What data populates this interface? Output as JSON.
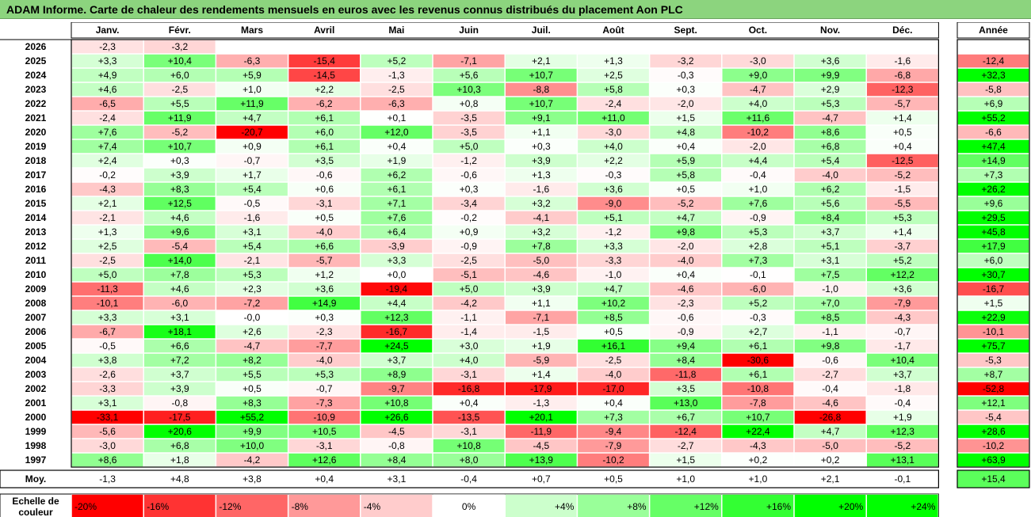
{
  "title": "ADAM Informe. Carte de chaleur des rendements mensuels en euros avec les revenus connus distribués du placement Aon PLC",
  "chart_data": {
    "type": "heatmap",
    "columns": [
      "Janv.",
      "Févr.",
      "Mars",
      "Avril",
      "Mai",
      "Juin",
      "Juil.",
      "Août",
      "Sept.",
      "Oct.",
      "Nov.",
      "Déc."
    ],
    "annual_header": "Année",
    "rows": [
      {
        "year": "2026",
        "months": [
          "-2,3",
          "-3,2",
          "",
          "",
          "",
          "",
          "",
          "",
          "",
          "",
          "",
          ""
        ],
        "annual": ""
      },
      {
        "year": "2025",
        "months": [
          "+3,3",
          "+10,4",
          "-6,3",
          "-15,4",
          "+5,2",
          "-7,1",
          "+2,1",
          "+1,3",
          "-3,2",
          "-3,0",
          "+3,6",
          "-1,6"
        ],
        "annual": "-12,4"
      },
      {
        "year": "2024",
        "months": [
          "+4,9",
          "+6,0",
          "+5,9",
          "-14,5",
          "-1,3",
          "+5,6",
          "+10,7",
          "+2,5",
          "-0,3",
          "+9,0",
          "+9,9",
          "-6,8"
        ],
        "annual": "+32,3"
      },
      {
        "year": "2023",
        "months": [
          "+4,6",
          "-2,5",
          "+1,0",
          "+2,2",
          "-2,5",
          "+10,3",
          "-8,8",
          "+5,8",
          "+0,3",
          "-4,7",
          "+2,9",
          "-12,3"
        ],
        "annual": "-5,8"
      },
      {
        "year": "2022",
        "months": [
          "-6,5",
          "+5,5",
          "+11,9",
          "-6,2",
          "-6,3",
          "+0,8",
          "+10,7",
          "-2,4",
          "-2,0",
          "+4,0",
          "+5,3",
          "-5,7"
        ],
        "annual": "+6,9"
      },
      {
        "year": "2021",
        "months": [
          "-2,4",
          "+11,9",
          "+4,7",
          "+6,1",
          "+0,1",
          "-3,5",
          "+9,1",
          "+11,0",
          "+1,5",
          "+11,6",
          "-4,7",
          "+1,4"
        ],
        "annual": "+55,2"
      },
      {
        "year": "2020",
        "months": [
          "+7,6",
          "-5,2",
          "-20,7",
          "+6,0",
          "+12,0",
          "-3,5",
          "+1,1",
          "-3,0",
          "+4,8",
          "-10,2",
          "+8,6",
          "+0,5"
        ],
        "annual": "-6,6"
      },
      {
        "year": "2019",
        "months": [
          "+7,4",
          "+10,7",
          "+0,9",
          "+6,1",
          "+0,4",
          "+5,0",
          "+0,3",
          "+4,0",
          "+0,4",
          "-2,0",
          "+6,8",
          "+0,4"
        ],
        "annual": "+47,4"
      },
      {
        "year": "2018",
        "months": [
          "+2,4",
          "+0,3",
          "-0,7",
          "+3,5",
          "+1,9",
          "-1,2",
          "+3,9",
          "+2,2",
          "+5,9",
          "+4,4",
          "+5,4",
          "-12,5"
        ],
        "annual": "+14,9"
      },
      {
        "year": "2017",
        "months": [
          "-0,2",
          "+3,9",
          "+1,7",
          "-0,6",
          "+6,2",
          "-0,6",
          "+1,3",
          "-0,3",
          "+5,8",
          "-0,4",
          "-4,0",
          "-5,2"
        ],
        "annual": "+7,3"
      },
      {
        "year": "2016",
        "months": [
          "-4,3",
          "+8,3",
          "+5,4",
          "+0,6",
          "+6,1",
          "+0,3",
          "-1,6",
          "+3,6",
          "+0,5",
          "+1,0",
          "+6,2",
          "-1,5"
        ],
        "annual": "+26,2"
      },
      {
        "year": "2015",
        "months": [
          "+2,1",
          "+12,5",
          "-0,5",
          "-3,1",
          "+7,1",
          "-3,4",
          "+3,2",
          "-9,0",
          "-5,2",
          "+7,6",
          "+5,6",
          "-5,5"
        ],
        "annual": "+9,6"
      },
      {
        "year": "2014",
        "months": [
          "-2,1",
          "+4,6",
          "-1,6",
          "+0,5",
          "+7,6",
          "-0,2",
          "-4,1",
          "+5,1",
          "+4,7",
          "-0,9",
          "+8,4",
          "+5,3"
        ],
        "annual": "+29,5"
      },
      {
        "year": "2013",
        "months": [
          "+1,3",
          "+9,6",
          "+3,1",
          "-4,0",
          "+6,4",
          "+0,9",
          "+3,2",
          "-1,2",
          "+9,8",
          "+5,3",
          "+3,7",
          "+1,4"
        ],
        "annual": "+45,8"
      },
      {
        "year": "2012",
        "months": [
          "+2,5",
          "-5,4",
          "+5,4",
          "+6,6",
          "-3,9",
          "-0,9",
          "+7,8",
          "+3,3",
          "-2,0",
          "+2,8",
          "+5,1",
          "-3,7"
        ],
        "annual": "+17,9"
      },
      {
        "year": "2011",
        "months": [
          "-2,5",
          "+14,0",
          "-2,1",
          "-5,7",
          "+3,3",
          "-2,5",
          "-5,0",
          "-3,3",
          "-4,0",
          "+7,3",
          "+3,1",
          "+5,2"
        ],
        "annual": "+6,0"
      },
      {
        "year": "2010",
        "months": [
          "+5,0",
          "+7,8",
          "+5,3",
          "+1,2",
          "+0,0",
          "-5,1",
          "-4,6",
          "-1,0",
          "+0,4",
          "-0,1",
          "+7,5",
          "+12,2"
        ],
        "annual": "+30,7"
      },
      {
        "year": "2009",
        "months": [
          "-11,3",
          "+4,6",
          "+2,3",
          "+3,6",
          "-19,4",
          "+5,0",
          "+3,9",
          "+4,7",
          "-4,6",
          "-6,0",
          "-1,0",
          "+3,6"
        ],
        "annual": "-16,7"
      },
      {
        "year": "2008",
        "months": [
          "-10,1",
          "-6,0",
          "-7,2",
          "+14,9",
          "+4,4",
          "-4,2",
          "+1,1",
          "+10,2",
          "-2,3",
          "+5,2",
          "+7,0",
          "-7,9"
        ],
        "annual": "+1,5"
      },
      {
        "year": "2007",
        "months": [
          "+3,3",
          "+3,1",
          "-0,0",
          "+0,3",
          "+12,3",
          "-1,1",
          "-7,1",
          "+8,5",
          "-0,6",
          "-0,3",
          "+8,5",
          "-4,3"
        ],
        "annual": "+22,9"
      },
      {
        "year": "2006",
        "months": [
          "-6,7",
          "+18,1",
          "+2,6",
          "-2,3",
          "-16,7",
          "-1,4",
          "-1,5",
          "+0,5",
          "-0,9",
          "+2,7",
          "-1,1",
          "-0,7"
        ],
        "annual": "-10,1"
      },
      {
        "year": "2005",
        "months": [
          "-0,5",
          "+6,6",
          "-4,7",
          "-7,7",
          "+24,5",
          "+3,0",
          "+1,9",
          "+16,1",
          "+9,4",
          "+6,1",
          "+9,8",
          "-1,7"
        ],
        "annual": "+75,7"
      },
      {
        "year": "2004",
        "months": [
          "+3,8",
          "+7,2",
          "+8,2",
          "-4,0",
          "+3,7",
          "+4,0",
          "-5,9",
          "-2,5",
          "+8,4",
          "-30,6",
          "-0,6",
          "+10,4"
        ],
        "annual": "-5,3"
      },
      {
        "year": "2003",
        "months": [
          "-2,6",
          "+3,7",
          "+5,5",
          "+5,3",
          "+8,9",
          "-3,1",
          "+1,4",
          "-4,0",
          "-11,8",
          "+6,1",
          "-2,7",
          "+3,7"
        ],
        "annual": "+8,7"
      },
      {
        "year": "2002",
        "months": [
          "-3,3",
          "+3,9",
          "+0,5",
          "-0,7",
          "-9,7",
          "-16,8",
          "-17,9",
          "-17,0",
          "+3,5",
          "-10,8",
          "-0,4",
          "-1,8"
        ],
        "annual": "-52,8"
      },
      {
        "year": "2001",
        "months": [
          "+3,1",
          "-0,8",
          "+8,3",
          "-7,3",
          "+10,8",
          "+0,4",
          "-1,3",
          "+0,4",
          "+13,0",
          "-7,8",
          "-4,6",
          "-0,4"
        ],
        "annual": "+12,1"
      },
      {
        "year": "2000",
        "months": [
          "-33,1",
          "-17,5",
          "+55,2",
          "-10,9",
          "+26,6",
          "-13,5",
          "+20,1",
          "+7,3",
          "+6,7",
          "+10,7",
          "-26,8",
          "+1,9"
        ],
        "annual": "-5,4"
      },
      {
        "year": "1999",
        "months": [
          "-5,6",
          "+20,6",
          "+9,9",
          "+10,5",
          "-4,5",
          "-3,1",
          "-11,9",
          "-9,4",
          "-12,4",
          "+22,4",
          "+4,7",
          "+12,3"
        ],
        "annual": "+28,6"
      },
      {
        "year": "1998",
        "months": [
          "-3,0",
          "+6,8",
          "+10,0",
          "-3,1",
          "-0,8",
          "+10,8",
          "-4,5",
          "-7,9",
          "-2,7",
          "-4,3",
          "-5,0",
          "-5,2"
        ],
        "annual": "-10,2"
      },
      {
        "year": "1997",
        "months": [
          "+8,6",
          "+1,8",
          "-4,2",
          "+12,6",
          "+8,4",
          "+8,0",
          "+13,9",
          "-10,2",
          "+1,5",
          "+0,2",
          "+0,2",
          "+13,1"
        ],
        "annual": "+63,9"
      }
    ],
    "average": {
      "label": "Moy.",
      "months": [
        "-1,3",
        "+4,8",
        "+3,8",
        "+0,4",
        "+3,1",
        "-0,4",
        "+0,7",
        "+0,5",
        "+1,0",
        "+1,0",
        "+2,1",
        "-0,1"
      ],
      "annual": "+15,4"
    },
    "scale": {
      "label_line1": "Echelle de",
      "label_line2": "couleur",
      "items": [
        "-20%",
        "-16%",
        "-12%",
        "-8%",
        "-4%",
        "0%",
        "+4%",
        "+8%",
        "+12%",
        "+16%",
        "+20%",
        "+24%"
      ],
      "values": [
        -20,
        -16,
        -12,
        -8,
        -4,
        0,
        4,
        8,
        12,
        16,
        20,
        24
      ]
    },
    "colors": {
      "negative": "#ff0000",
      "positive": "#00ff00",
      "neutral": "#ffffff"
    }
  }
}
